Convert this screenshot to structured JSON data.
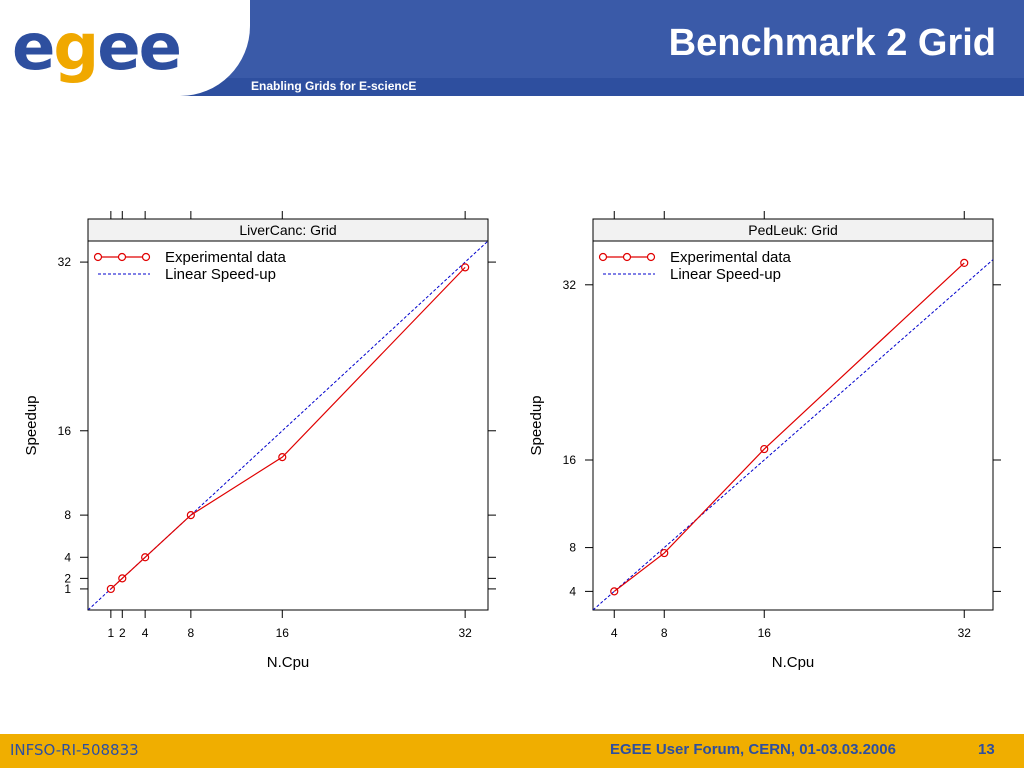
{
  "header": {
    "logo_text": "egee",
    "tagline": "Enabling Grids for E-sciencE",
    "title": "Benchmark 2 Grid"
  },
  "footer": {
    "left": "INFSO-RI-508833",
    "right": "EGEE User Forum, CERN, 01-03.03.2006",
    "page": "13"
  },
  "colors": {
    "header_blue": "#3a5aa8",
    "footer_orange": "#f0ae00",
    "experimental": "#e00000",
    "linear": "#0000cc"
  },
  "chart_data": [
    {
      "type": "line",
      "title": "LiverCanc: Grid",
      "xlabel": "N.Cpu",
      "ylabel": "Speedup",
      "x_ticks": [
        1,
        2,
        4,
        8,
        16,
        32
      ],
      "y_ticks": [
        1,
        2,
        4,
        8,
        16,
        32
      ],
      "xlim": [
        -1,
        34
      ],
      "ylim": [
        -1,
        34
      ],
      "legend": [
        "Experimental data",
        "Linear Speed-up"
      ],
      "legend_position": "top-left",
      "series": [
        {
          "name": "Experimental data",
          "x": [
            1,
            2,
            4,
            8,
            16,
            32
          ],
          "y": [
            1,
            2,
            4,
            8,
            13.5,
            31.5
          ]
        },
        {
          "name": "Linear Speed-up",
          "x": [
            -1,
            34
          ],
          "y": [
            -1,
            34
          ]
        }
      ]
    },
    {
      "type": "line",
      "title": "PedLeuk: Grid",
      "xlabel": "N.Cpu",
      "ylabel": "Speedup",
      "x_ticks": [
        4,
        8,
        16,
        32
      ],
      "y_ticks": [
        4,
        8,
        16,
        32
      ],
      "xlim": [
        2.3,
        34.3
      ],
      "ylim": [
        2.3,
        36
      ],
      "legend": [
        "Experimental data",
        "Linear Speed-up"
      ],
      "legend_position": "top-left",
      "series": [
        {
          "name": "Experimental data",
          "x": [
            4,
            8,
            16,
            32
          ],
          "y": [
            4,
            7.5,
            17,
            34
          ]
        },
        {
          "name": "Linear Speed-up",
          "x": [
            2.3,
            34.3
          ],
          "y": [
            2.3,
            34.3
          ]
        }
      ]
    }
  ]
}
